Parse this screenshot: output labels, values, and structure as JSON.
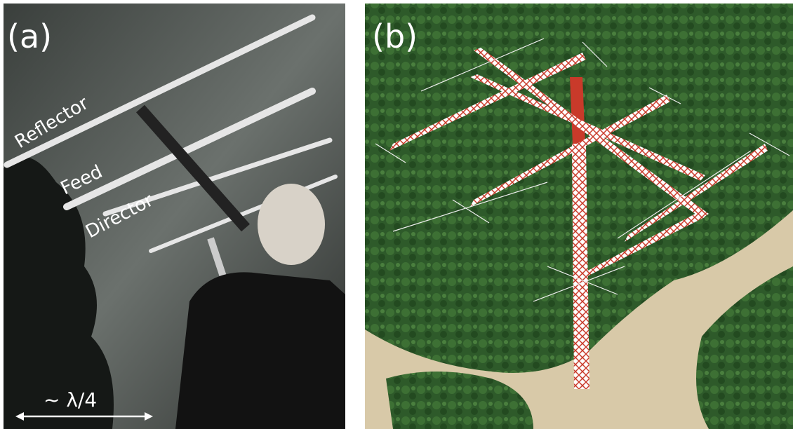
{
  "panels": [
    {
      "label": "(a)",
      "annotations": [
        "Reflector",
        "Feed",
        "Director"
      ],
      "scale": "~ λ/4"
    },
    {
      "label": "(b)"
    }
  ]
}
